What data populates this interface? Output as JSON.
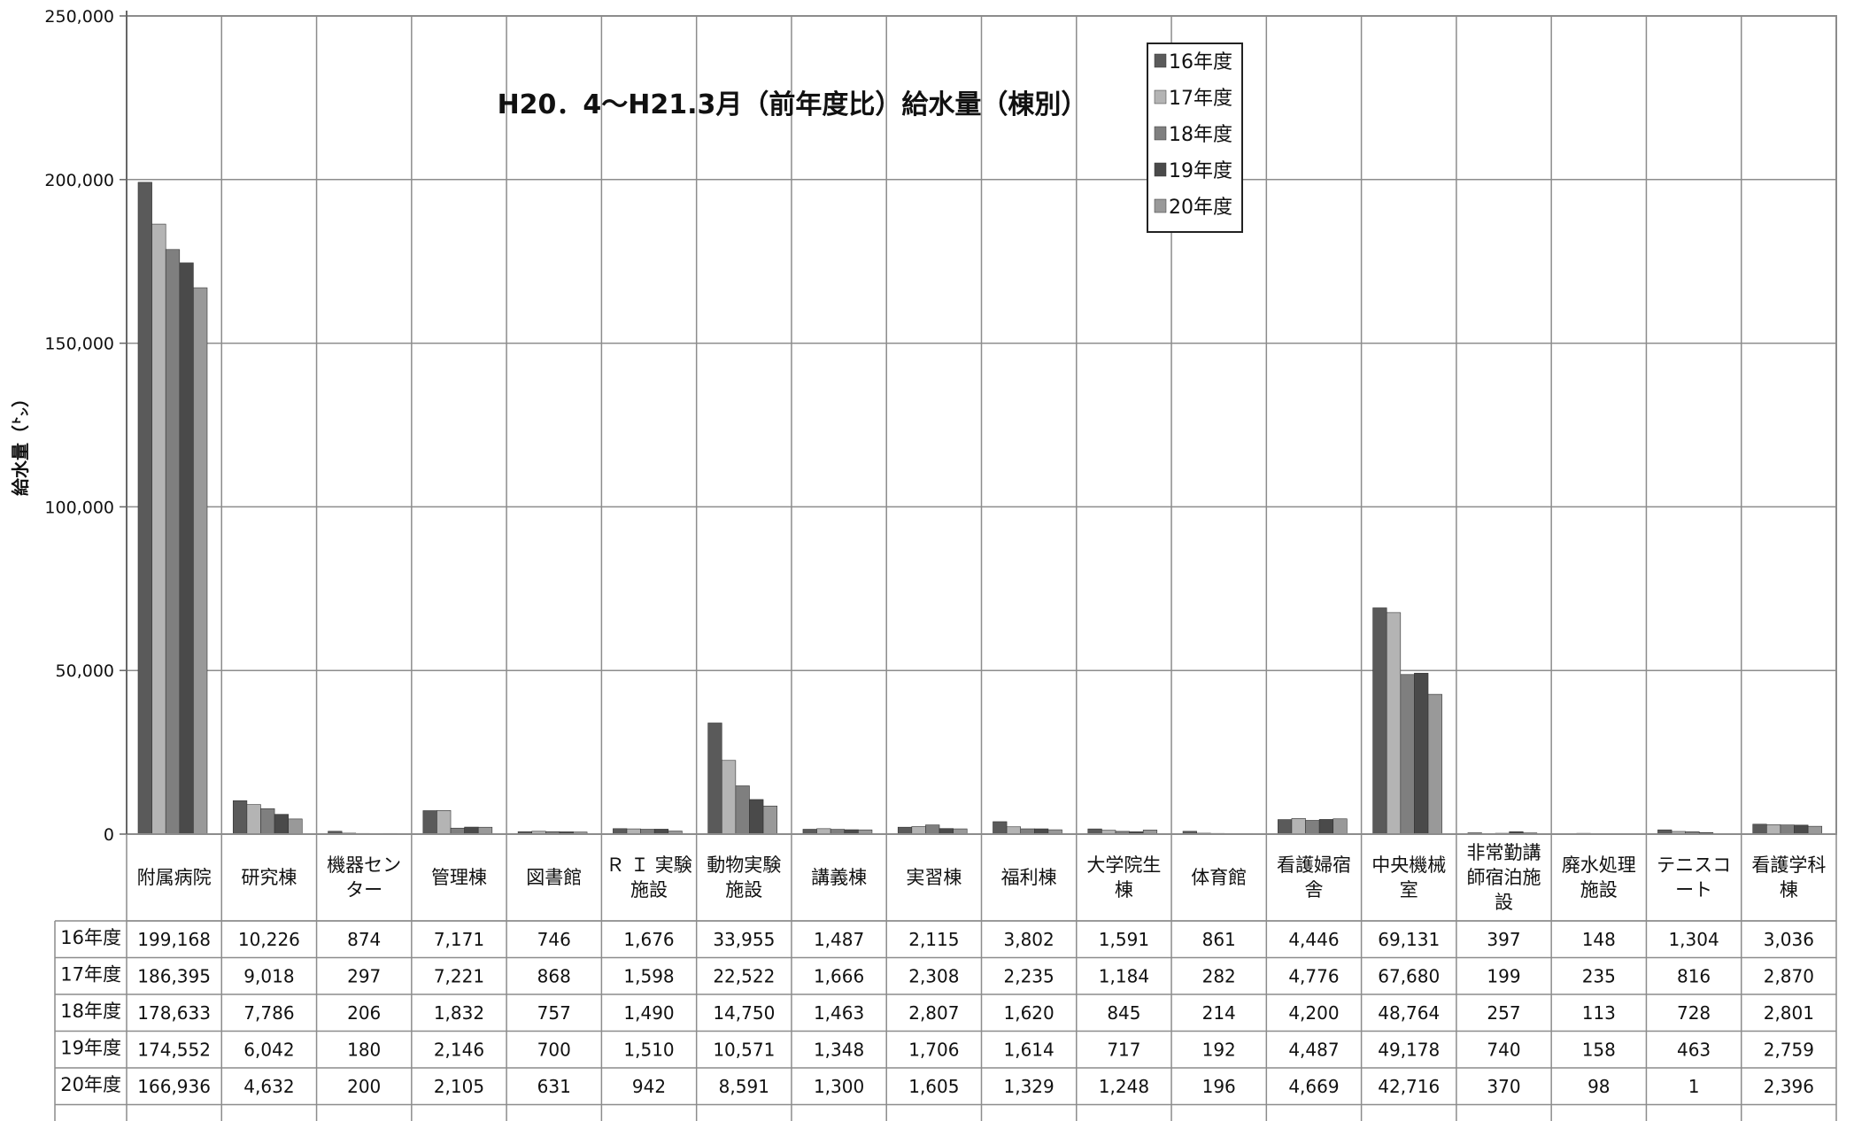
{
  "chart_data": {
    "type": "bar",
    "title": "H20．4～H21.3月（前年度比）給水量（棟別）",
    "ylabel": "給水量（㌧）",
    "xlabel": "",
    "ylim": [
      0,
      250000
    ],
    "yticks": [
      0,
      50000,
      100000,
      150000,
      200000,
      250000
    ],
    "ytick_labels": [
      "0",
      "50,000",
      "100,000",
      "150,000",
      "200,000",
      "250,000"
    ],
    "grid": true,
    "legend_position": "top-right",
    "data_table": true,
    "categories": [
      [
        "附属病院"
      ],
      [
        "研究棟"
      ],
      [
        "機器セン",
        "ター"
      ],
      [
        "管理棟"
      ],
      [
        "図書館"
      ],
      [
        "Ｒ Ｉ 実験",
        "施設"
      ],
      [
        "動物実験",
        "施設"
      ],
      [
        "講義棟"
      ],
      [
        "実習棟"
      ],
      [
        "福利棟"
      ],
      [
        "大学院生",
        "棟"
      ],
      [
        "体育館"
      ],
      [
        "看護婦宿",
        "舎"
      ],
      [
        "中央機械",
        "室"
      ],
      [
        "非常勤講",
        "師宿泊施",
        "設"
      ],
      [
        "廃水処理",
        "施設"
      ],
      [
        "テニスコ",
        "ート"
      ],
      [
        "看護学科",
        "棟"
      ]
    ],
    "series": [
      {
        "name": "16年度",
        "color": "#5a5a5a",
        "values": [
          199168,
          10226,
          874,
          7171,
          746,
          1676,
          33955,
          1487,
          2115,
          3802,
          1591,
          861,
          4446,
          69131,
          397,
          148,
          1304,
          3036
        ],
        "labels": [
          "199,168",
          "10,226",
          "874",
          "7,171",
          "746",
          "1,676",
          "33,955",
          "1,487",
          "2,115",
          "3,802",
          "1,591",
          "861",
          "4,446",
          "69,131",
          "397",
          "148",
          "1,304",
          "3,036"
        ]
      },
      {
        "name": "17年度",
        "color": "#b4b4b4",
        "values": [
          186395,
          9018,
          297,
          7221,
          868,
          1598,
          22522,
          1666,
          2308,
          2235,
          1184,
          282,
          4776,
          67680,
          199,
          235,
          816,
          2870
        ],
        "labels": [
          "186,395",
          "9,018",
          "297",
          "7,221",
          "868",
          "1,598",
          "22,522",
          "1,666",
          "2,308",
          "2,235",
          "1,184",
          "282",
          "4,776",
          "67,680",
          "199",
          "235",
          "816",
          "2,870"
        ]
      },
      {
        "name": "18年度",
        "color": "#7f7f7f",
        "values": [
          178633,
          7786,
          206,
          1832,
          757,
          1490,
          14750,
          1463,
          2807,
          1620,
          845,
          214,
          4200,
          48764,
          257,
          113,
          728,
          2801
        ],
        "labels": [
          "178,633",
          "7,786",
          "206",
          "1,832",
          "757",
          "1,490",
          "14,750",
          "1,463",
          "2,807",
          "1,620",
          "845",
          "214",
          "4,200",
          "48,764",
          "257",
          "113",
          "728",
          "2,801"
        ]
      },
      {
        "name": "19年度",
        "color": "#4a4a4a",
        "values": [
          174552,
          6042,
          180,
          2146,
          700,
          1510,
          10571,
          1348,
          1706,
          1614,
          717,
          192,
          4487,
          49178,
          740,
          158,
          463,
          2759
        ],
        "labels": [
          "174,552",
          "6,042",
          "180",
          "2,146",
          "700",
          "1,510",
          "10,571",
          "1,348",
          "1,706",
          "1,614",
          "717",
          "192",
          "4,487",
          "49,178",
          "740",
          "158",
          "463",
          "2,759"
        ]
      },
      {
        "name": "20年度",
        "color": "#999999",
        "values": [
          166936,
          4632,
          200,
          2105,
          631,
          942,
          8591,
          1300,
          1605,
          1329,
          1248,
          196,
          4669,
          42716,
          370,
          98,
          1,
          2396
        ],
        "labels": [
          "166,936",
          "4,632",
          "200",
          "2,105",
          "631",
          "942",
          "8,591",
          "1,300",
          "1,605",
          "1,329",
          "1,248",
          "196",
          "4,669",
          "42,716",
          "370",
          "98",
          "1",
          "2,396"
        ]
      }
    ]
  }
}
